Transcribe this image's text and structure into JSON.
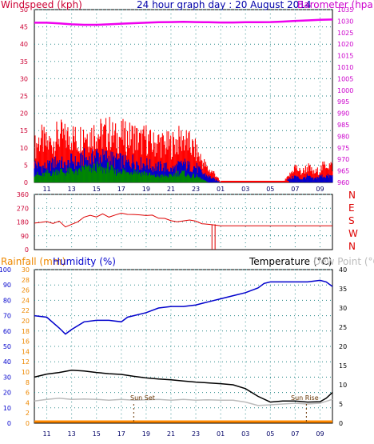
{
  "header": {
    "windspeed_label": "Windspeed (kph)",
    "title": "24 hour graph day : 20 August 2014",
    "barometer_label": "Barometer (hpa)"
  },
  "bottom_header": {
    "rainfall_label": "Rainfall (mm)",
    "humidity_label": "Humidity (%)",
    "temperature_label": "Temperature (°C)",
    "dewpoint_label": "Dew Point (°C)"
  },
  "annotations": {
    "sunset": "Sun Set",
    "sunrise": "Sun Rise"
  },
  "colors": {
    "wind_gust": "#ff0000",
    "wind_avg": "#0000cc",
    "wind_low": "#008800",
    "barometer": "#ee00ee",
    "direction": "#dd0000",
    "humidity": "#0000cc",
    "temperature": "#000000",
    "dewpoint": "#bbbbbb",
    "rainfall": "#ff8800",
    "grid": "#2a8a8a"
  },
  "chart_data": [
    {
      "type": "area",
      "id": "wind-barometer",
      "title": "24 hour graph day : 20 August 2014",
      "ylabel": "Windspeed (kph)",
      "y2label": "Barometer (hpa)",
      "ylim": [
        0,
        50
      ],
      "y2lim": [
        960,
        1035
      ],
      "yticks": [
        "0",
        "5",
        "10",
        "15",
        "20",
        "25",
        "30",
        "35",
        "40",
        "45",
        "50"
      ],
      "y2ticks": [
        "960",
        "965",
        "970",
        "975",
        "980",
        "985",
        "990",
        "995",
        "1000",
        "1005",
        "1010",
        "1015",
        "1020",
        "1025",
        "1030",
        "1035"
      ],
      "x_tick_labels": [
        "11",
        "13",
        "15",
        "17",
        "19",
        "21",
        "23",
        "01",
        "03",
        "05",
        "07",
        "09"
      ],
      "x_hours": [
        10,
        34
      ],
      "series": [
        {
          "key": "gust",
          "x": [
            10,
            10.5,
            11,
            11.5,
            12,
            12.5,
            13,
            13.5,
            14,
            14.5,
            15,
            15.5,
            16,
            16.5,
            17,
            17.5,
            18,
            18.5,
            19,
            19.5,
            20,
            20.5,
            21,
            21.5,
            22,
            22.5,
            23,
            23.5,
            24,
            24.5,
            25,
            25.5,
            26,
            26.5,
            27,
            27.5,
            28,
            28.5,
            29,
            29.5,
            30,
            30.5,
            31,
            31.5,
            32,
            32.5,
            33,
            33.5,
            34
          ],
          "values": [
            11,
            14,
            12,
            13,
            15,
            14,
            15,
            13,
            16,
            15,
            16,
            15,
            16,
            14,
            15,
            14,
            15,
            13,
            14,
            12,
            13,
            12,
            12,
            13,
            14,
            12,
            10,
            7,
            4,
            3,
            0,
            0,
            0,
            0,
            0,
            0,
            0,
            0,
            0,
            0,
            0,
            2,
            5,
            3,
            5,
            3,
            4,
            6,
            5
          ]
        },
        {
          "key": "avg",
          "x": [
            10,
            10.5,
            11,
            11.5,
            12,
            12.5,
            13,
            13.5,
            14,
            14.5,
            15,
            15.5,
            16,
            16.5,
            17,
            17.5,
            18,
            18.5,
            19,
            19.5,
            20,
            20.5,
            21,
            21.5,
            22,
            22.5,
            23,
            23.5,
            24,
            24.5,
            25,
            25.5,
            26,
            26.5,
            27,
            27.5,
            28,
            28.5,
            29,
            29.5,
            30,
            30.5,
            31,
            31.5,
            32,
            32.5,
            33,
            33.5,
            34
          ],
          "values": [
            6,
            5,
            5,
            6,
            7,
            5,
            7,
            6,
            8,
            7,
            9,
            8,
            8,
            7,
            7,
            6,
            7,
            6,
            6,
            5,
            5,
            5,
            4,
            5,
            6,
            5,
            5,
            3,
            2,
            1,
            0,
            0,
            0,
            0,
            0,
            0,
            0,
            0,
            0,
            0,
            0,
            1,
            2,
            1,
            2,
            1,
            2,
            2,
            2
          ]
        },
        {
          "key": "low",
          "x": [
            10,
            10.5,
            11,
            11.5,
            12,
            12.5,
            13,
            13.5,
            14,
            14.5,
            15,
            15.5,
            16,
            16.5,
            17,
            17.5,
            18,
            18.5,
            19,
            19.5,
            20,
            20.5,
            21,
            21.5,
            22,
            22.5,
            23,
            23.5,
            24,
            24.5,
            25,
            25.5,
            26,
            26.5,
            27,
            27.5,
            28,
            28.5,
            29,
            29.5,
            30,
            30.5,
            31,
            31.5,
            32,
            32.5,
            33,
            33.5,
            34
          ],
          "values": [
            3,
            2,
            3,
            3,
            4,
            3,
            4,
            3,
            5,
            4,
            5,
            4,
            5,
            3,
            4,
            3,
            4,
            3,
            3,
            2,
            2,
            2,
            2,
            3,
            3,
            2,
            2,
            1,
            0,
            0,
            0,
            0,
            0,
            0,
            0,
            0,
            0,
            0,
            0,
            0,
            0,
            0,
            0,
            0,
            0,
            0,
            0,
            0,
            0
          ]
        },
        {
          "key": "barometer",
          "axis": "y2",
          "x": [
            10,
            11,
            12,
            13,
            14,
            15,
            16,
            17,
            18,
            19,
            20,
            21,
            22,
            23,
            24,
            25,
            26,
            27,
            28,
            29,
            30,
            31,
            32,
            33,
            34
          ],
          "values": [
            1029.3,
            1029.3,
            1029.0,
            1028.6,
            1028.4,
            1028.4,
            1028.6,
            1028.9,
            1029.1,
            1029.3,
            1029.5,
            1029.6,
            1029.7,
            1029.6,
            1029.5,
            1029.4,
            1029.4,
            1029.5,
            1029.5,
            1029.6,
            1029.8,
            1030.1,
            1030.3,
            1030.6,
            1030.7
          ]
        }
      ]
    },
    {
      "type": "line",
      "id": "wind-direction",
      "ylim": [
        0,
        360
      ],
      "yticks": [
        "0",
        "90",
        "180",
        "270",
        "360"
      ],
      "direction_labels": [
        "N",
        "W",
        "S",
        "E",
        "N"
      ],
      "series": [
        {
          "key": "direction",
          "x": [
            10,
            10.5,
            11,
            11.5,
            12,
            12.5,
            13,
            13.5,
            14,
            14.5,
            15,
            15.5,
            16,
            16.5,
            17,
            17.5,
            18,
            18.5,
            19,
            19.5,
            20,
            20.5,
            21,
            21.5,
            22,
            22.5,
            23,
            23.5,
            24,
            24.5,
            25,
            26,
            27,
            28,
            29,
            30,
            31,
            32,
            33,
            34
          ],
          "values": [
            180,
            185,
            175,
            170,
            180,
            150,
            160,
            190,
            205,
            215,
            220,
            225,
            220,
            225,
            230,
            228,
            225,
            220,
            218,
            215,
            210,
            200,
            195,
            190,
            185,
            188,
            180,
            175,
            165,
            160,
            155,
            155,
            155,
            155,
            155,
            155,
            155,
            155,
            155,
            155
          ]
        }
      ]
    },
    {
      "type": "line",
      "id": "temp-humidity",
      "ylabel": "Humidity (%)",
      "y1lim": [
        0,
        100
      ],
      "y1ticks": [
        "0",
        "10",
        "20",
        "30",
        "40",
        "50",
        "60",
        "70",
        "80",
        "90",
        "100"
      ],
      "rain_lim": [
        0,
        30
      ],
      "rain_ticks": [
        "0",
        "2",
        "4",
        "6",
        "8",
        "10",
        "12",
        "14",
        "16",
        "18",
        "20",
        "22",
        "24",
        "26",
        "28",
        "30"
      ],
      "y2label": "Temperature (°C)",
      "y2lim": [
        0,
        40
      ],
      "y2ticks": [
        "0",
        "5",
        "10",
        "15",
        "20",
        "25",
        "30",
        "35",
        "40"
      ],
      "x_tick_labels": [
        "11",
        "13",
        "15",
        "17",
        "19",
        "21",
        "23",
        "01",
        "03",
        "05",
        "07",
        "09"
      ],
      "series": [
        {
          "key": "humidity",
          "axis": "y1",
          "x": [
            10,
            11,
            12,
            12.5,
            13,
            14,
            15,
            16,
            17,
            17.5,
            18,
            19,
            20,
            21,
            22,
            23,
            24,
            25,
            26,
            27,
            28,
            28.5,
            29,
            30,
            31,
            32,
            33,
            33.5,
            34
          ],
          "values": [
            70,
            69,
            62,
            58,
            61,
            66,
            67,
            67,
            66,
            69,
            70,
            72,
            75,
            76,
            76,
            77,
            79,
            81,
            83,
            85,
            88,
            91,
            92,
            92,
            92,
            92,
            93,
            92,
            89
          ]
        },
        {
          "key": "temperature",
          "axis": "y2",
          "x": [
            10,
            11,
            12,
            13,
            14,
            15,
            16,
            17,
            18,
            19,
            20,
            21,
            22,
            23,
            24,
            25,
            26,
            27,
            28,
            29,
            30,
            31,
            32,
            33,
            33.5,
            34
          ],
          "values": [
            12,
            12.8,
            13.2,
            13.8,
            13.6,
            13.2,
            12.9,
            12.7,
            12.2,
            11.8,
            11.5,
            11.3,
            11.0,
            10.7,
            10.5,
            10.3,
            10.0,
            9.0,
            7.0,
            5.5,
            5.8,
            5.8,
            5.5,
            5.6,
            6.5,
            8.0
          ]
        },
        {
          "key": "dewpoint",
          "axis": "y2",
          "x": [
            10,
            11,
            12,
            13,
            14,
            15,
            16,
            17,
            18,
            19,
            20,
            21,
            22,
            23,
            24,
            25,
            26,
            27,
            28,
            29,
            30,
            31,
            32,
            33,
            34
          ],
          "values": [
            5.8,
            6.2,
            6.5,
            6.2,
            6.3,
            6.2,
            6.0,
            6.2,
            6.0,
            6.1,
            6.2,
            6.0,
            6.2,
            6.0,
            6.1,
            6.0,
            6.0,
            5.5,
            4.6,
            4.8,
            5.0,
            5.2,
            5.0,
            5.2,
            6.2
          ]
        },
        {
          "key": "rainfall",
          "axis": "rain",
          "x": [
            10,
            34
          ],
          "values": [
            0,
            0
          ]
        }
      ],
      "sunset_hour": 18.0,
      "sunrise_hour": 31.9
    }
  ]
}
